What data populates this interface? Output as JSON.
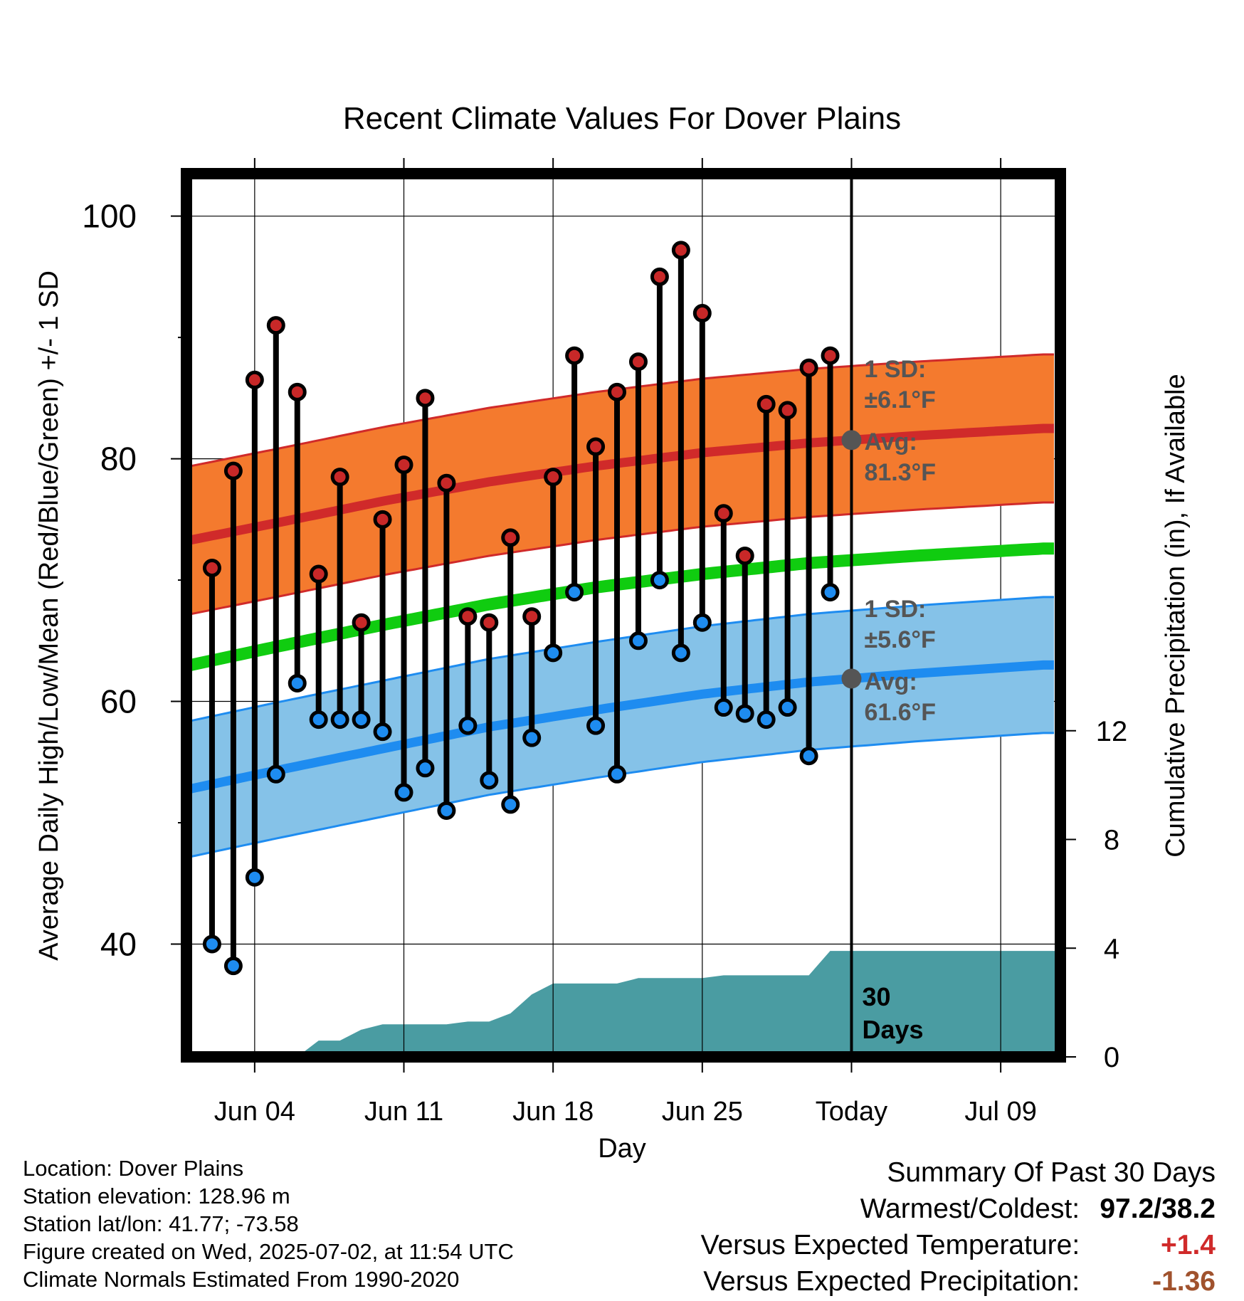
{
  "chart_data": {
    "type": "line",
    "title": "Recent Climate Values For Dover Plains",
    "xlabel": "Day",
    "ylabel": "Average Daily High/Low/Mean (Red/Blue/Green) +/- 1 SD",
    "y2label": "Cumulative Precipitation (in), If Available",
    "x_tick_labels": [
      "Jun 04",
      "Jun 11",
      "Jun 18",
      "Jun 25",
      "Today",
      "Jul 09"
    ],
    "x_tick_days": [
      4,
      11,
      18,
      25,
      32,
      39
    ],
    "xlim": [
      0.8,
      41.8
    ],
    "ylim": [
      30.7,
      103.5
    ],
    "y_ticks": [
      40,
      60,
      80,
      100
    ],
    "y2lim": [
      0,
      32.5
    ],
    "y2_ticks": [
      0,
      4,
      8,
      12
    ],
    "grid": true,
    "today_day": 32,
    "normals": {
      "day": [
        1,
        5,
        10,
        15,
        20,
        25,
        30,
        35,
        41
      ],
      "high_avg": [
        73.3,
        74.7,
        76.5,
        78.1,
        79.4,
        80.5,
        81.3,
        81.9,
        82.5
      ],
      "high_sd": 6.1,
      "low_avg": [
        52.8,
        54.3,
        56.1,
        57.9,
        59.3,
        60.6,
        61.6,
        62.3,
        63.0
      ],
      "low_sd": 5.6,
      "mean_avg": [
        63.0,
        64.5,
        66.3,
        68.0,
        69.4,
        70.5,
        71.4,
        72.0,
        72.6
      ],
      "high_band_color": "#F47A2E",
      "high_line_color": "#D02A2A",
      "low_band_color": "#85C2E8",
      "low_line_color": "#1E8CF0",
      "mean_line_color": "#10CC10"
    },
    "daily": {
      "day": [
        2,
        3,
        4,
        5,
        6,
        7,
        8,
        9,
        10,
        11,
        12,
        13,
        14,
        15,
        16,
        17,
        18,
        19,
        20,
        21,
        22,
        23,
        24,
        25,
        26,
        27,
        28,
        29,
        30,
        31
      ],
      "high": [
        71.0,
        79.0,
        86.5,
        91.0,
        85.5,
        70.5,
        78.5,
        66.5,
        75.0,
        79.5,
        85.0,
        78.0,
        67.0,
        66.5,
        73.5,
        67.0,
        78.5,
        88.5,
        81.0,
        85.5,
        88.0,
        95.0,
        97.2,
        92.0,
        75.5,
        72.0,
        84.5,
        84.0,
        87.5,
        88.5
      ],
      "low": [
        40.0,
        38.2,
        45.5,
        54.0,
        61.5,
        58.5,
        58.5,
        58.5,
        57.5,
        52.5,
        54.5,
        51.0,
        58.0,
        53.5,
        51.5,
        57.0,
        64.0,
        69.0,
        58.0,
        54.0,
        65.0,
        70.0,
        64.0,
        66.5,
        59.5,
        59.0,
        58.5,
        59.5,
        55.5,
        69.0
      ],
      "high_marker_color": "#C82828",
      "low_marker_color": "#1E8CF0"
    },
    "precip": {
      "day": [
        1,
        6,
        7,
        8,
        9,
        10,
        11,
        12,
        13,
        14,
        15,
        16,
        17,
        18,
        19,
        20,
        21,
        22,
        23,
        24,
        25,
        26,
        27,
        28,
        29,
        30,
        31,
        32,
        41.8
      ],
      "cum": [
        0,
        0,
        0.6,
        0.6,
        1.0,
        1.2,
        1.2,
        1.2,
        1.2,
        1.3,
        1.3,
        1.6,
        2.3,
        2.7,
        2.7,
        2.7,
        2.7,
        2.9,
        2.9,
        2.9,
        2.9,
        3.0,
        3.0,
        3.0,
        3.0,
        3.0,
        3.9,
        3.9,
        3.9
      ],
      "color": "#4A9CA2"
    },
    "annotations": {
      "high_sd_label": "1 SD:",
      "high_sd_value": "±6.1°F",
      "high_avg_label": "Avg:",
      "high_avg_value": "81.3°F",
      "low_sd_label": "1 SD:",
      "low_sd_value": "±5.6°F",
      "low_avg_label": "Avg:",
      "low_avg_value": "61.6°F",
      "window_label_1": "30",
      "window_label_2": "Days"
    }
  },
  "info": {
    "location": "Location: Dover Plains",
    "elevation": "Station elevation: 128.96 m",
    "latlon": "Station lat/lon: 41.77; -73.58",
    "created": "Figure created on Wed, 2025-07-02, at 11:54 UTC",
    "normals": "Climate Normals Estimated From 1990-2020"
  },
  "summary": {
    "title": "Summary Of Past 30 Days",
    "warm_cold_label": "Warmest/Coldest:",
    "warm_cold_value": "97.2/38.2",
    "temp_label": "Versus Expected Temperature:",
    "temp_value": "+1.4",
    "temp_color": "#D02A2A",
    "precip_label": "Versus Expected Precipitation:",
    "precip_value": "-1.36",
    "precip_color": "#A0522D"
  }
}
